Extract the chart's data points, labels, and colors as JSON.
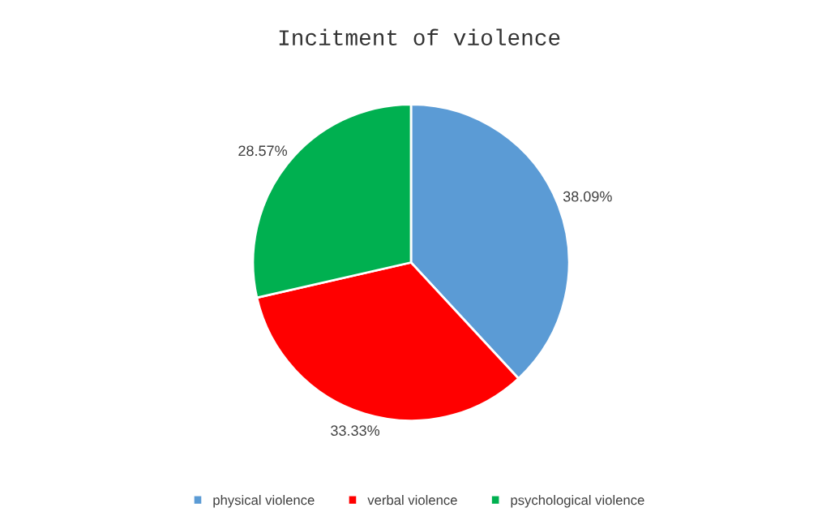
{
  "chart_data": {
    "type": "pie",
    "title": "Incitment of violence",
    "categories": [
      "physical violence",
      "verbal violence",
      "psychological violence"
    ],
    "values": [
      38.09,
      33.33,
      28.57
    ],
    "colors": [
      "#5b9bd5",
      "#ff0000",
      "#00b050"
    ],
    "value_labels": [
      "38.09%",
      "33.33%",
      "28.57%"
    ],
    "legend": "bottom"
  }
}
